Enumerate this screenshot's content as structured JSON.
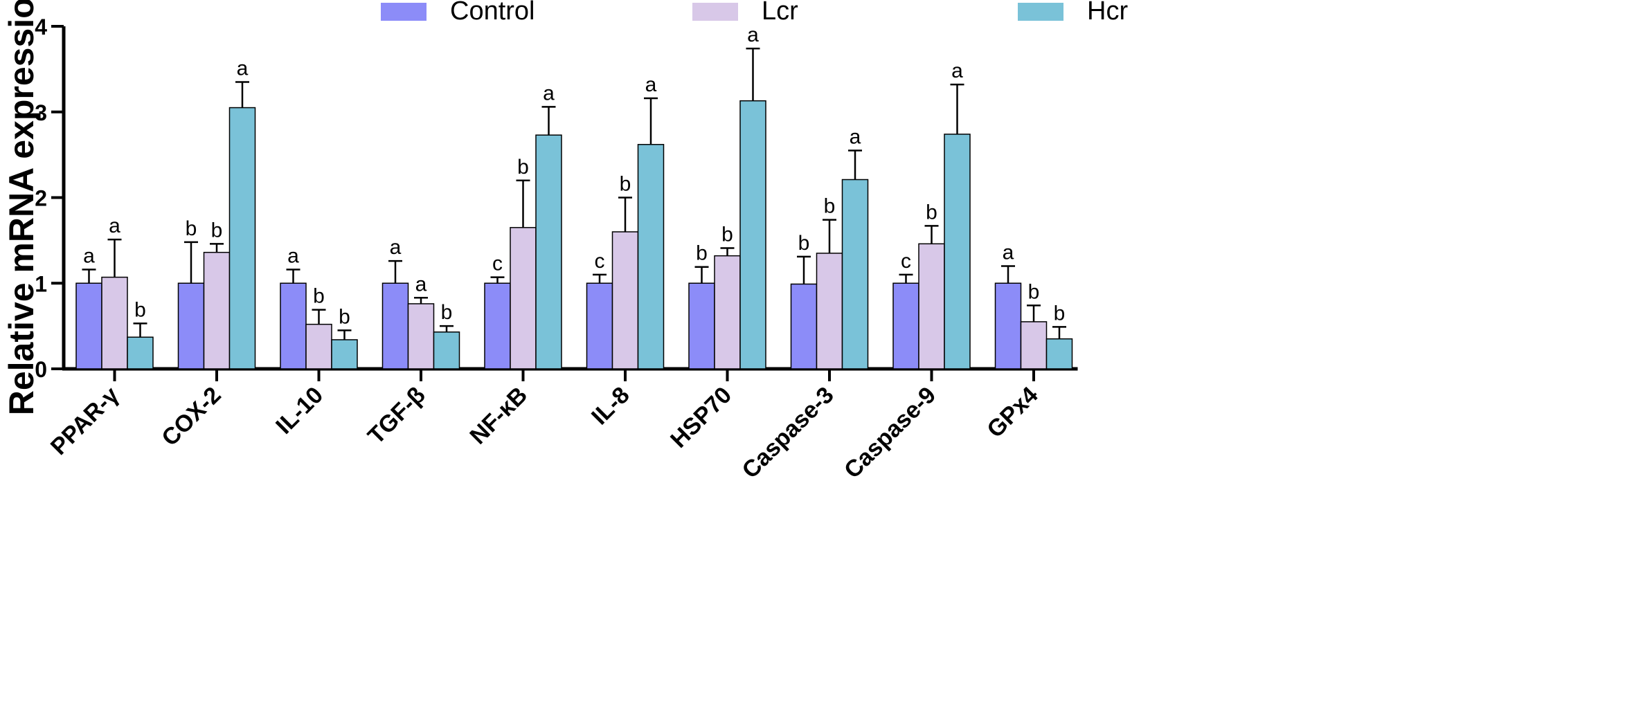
{
  "chart_data": {
    "type": "bar",
    "title": "",
    "xlabel": "",
    "ylabel": "Relative mRNA expression",
    "ylim": [
      0,
      4
    ],
    "yticks": [
      0,
      1,
      2,
      3,
      4
    ],
    "legend_position": "top",
    "categories": [
      "PPAR-γ",
      "COX-2",
      "IL-10",
      "TGF-β",
      "NF-κB",
      "IL-8",
      "HSP70",
      "Caspase-3",
      "Caspase-9",
      "GPx4"
    ],
    "series": [
      {
        "name": "Control",
        "color": "#8c8cf8",
        "values": [
          1.0,
          1.0,
          1.0,
          1.0,
          1.0,
          1.0,
          1.0,
          0.99,
          1.0,
          1.0
        ],
        "errors": [
          0.16,
          0.48,
          0.16,
          0.26,
          0.07,
          0.1,
          0.19,
          0.32,
          0.1,
          0.2
        ],
        "labels": [
          "a",
          "b",
          "a",
          "a",
          "c",
          "c",
          "b",
          "b",
          "c",
          "a"
        ]
      },
      {
        "name": "Lcr",
        "color": "#d8c8e8",
        "values": [
          1.07,
          1.36,
          0.52,
          0.76,
          1.65,
          1.6,
          1.32,
          1.35,
          1.46,
          0.55
        ],
        "errors": [
          0.44,
          0.1,
          0.17,
          0.07,
          0.55,
          0.4,
          0.09,
          0.39,
          0.21,
          0.19
        ],
        "labels": [
          "a",
          "b",
          "b",
          "a",
          "b",
          "b",
          "b",
          "b",
          "b",
          "b"
        ]
      },
      {
        "name": "Hcr",
        "color": "#7ac2d8",
        "values": [
          0.37,
          3.05,
          0.34,
          0.43,
          2.73,
          2.62,
          3.13,
          2.21,
          2.74,
          0.35
        ],
        "errors": [
          0.16,
          0.3,
          0.11,
          0.07,
          0.33,
          0.54,
          0.61,
          0.34,
          0.58,
          0.14
        ],
        "labels": [
          "b",
          "a",
          "b",
          "b",
          "a",
          "a",
          "a",
          "a",
          "a",
          "b"
        ]
      }
    ]
  }
}
